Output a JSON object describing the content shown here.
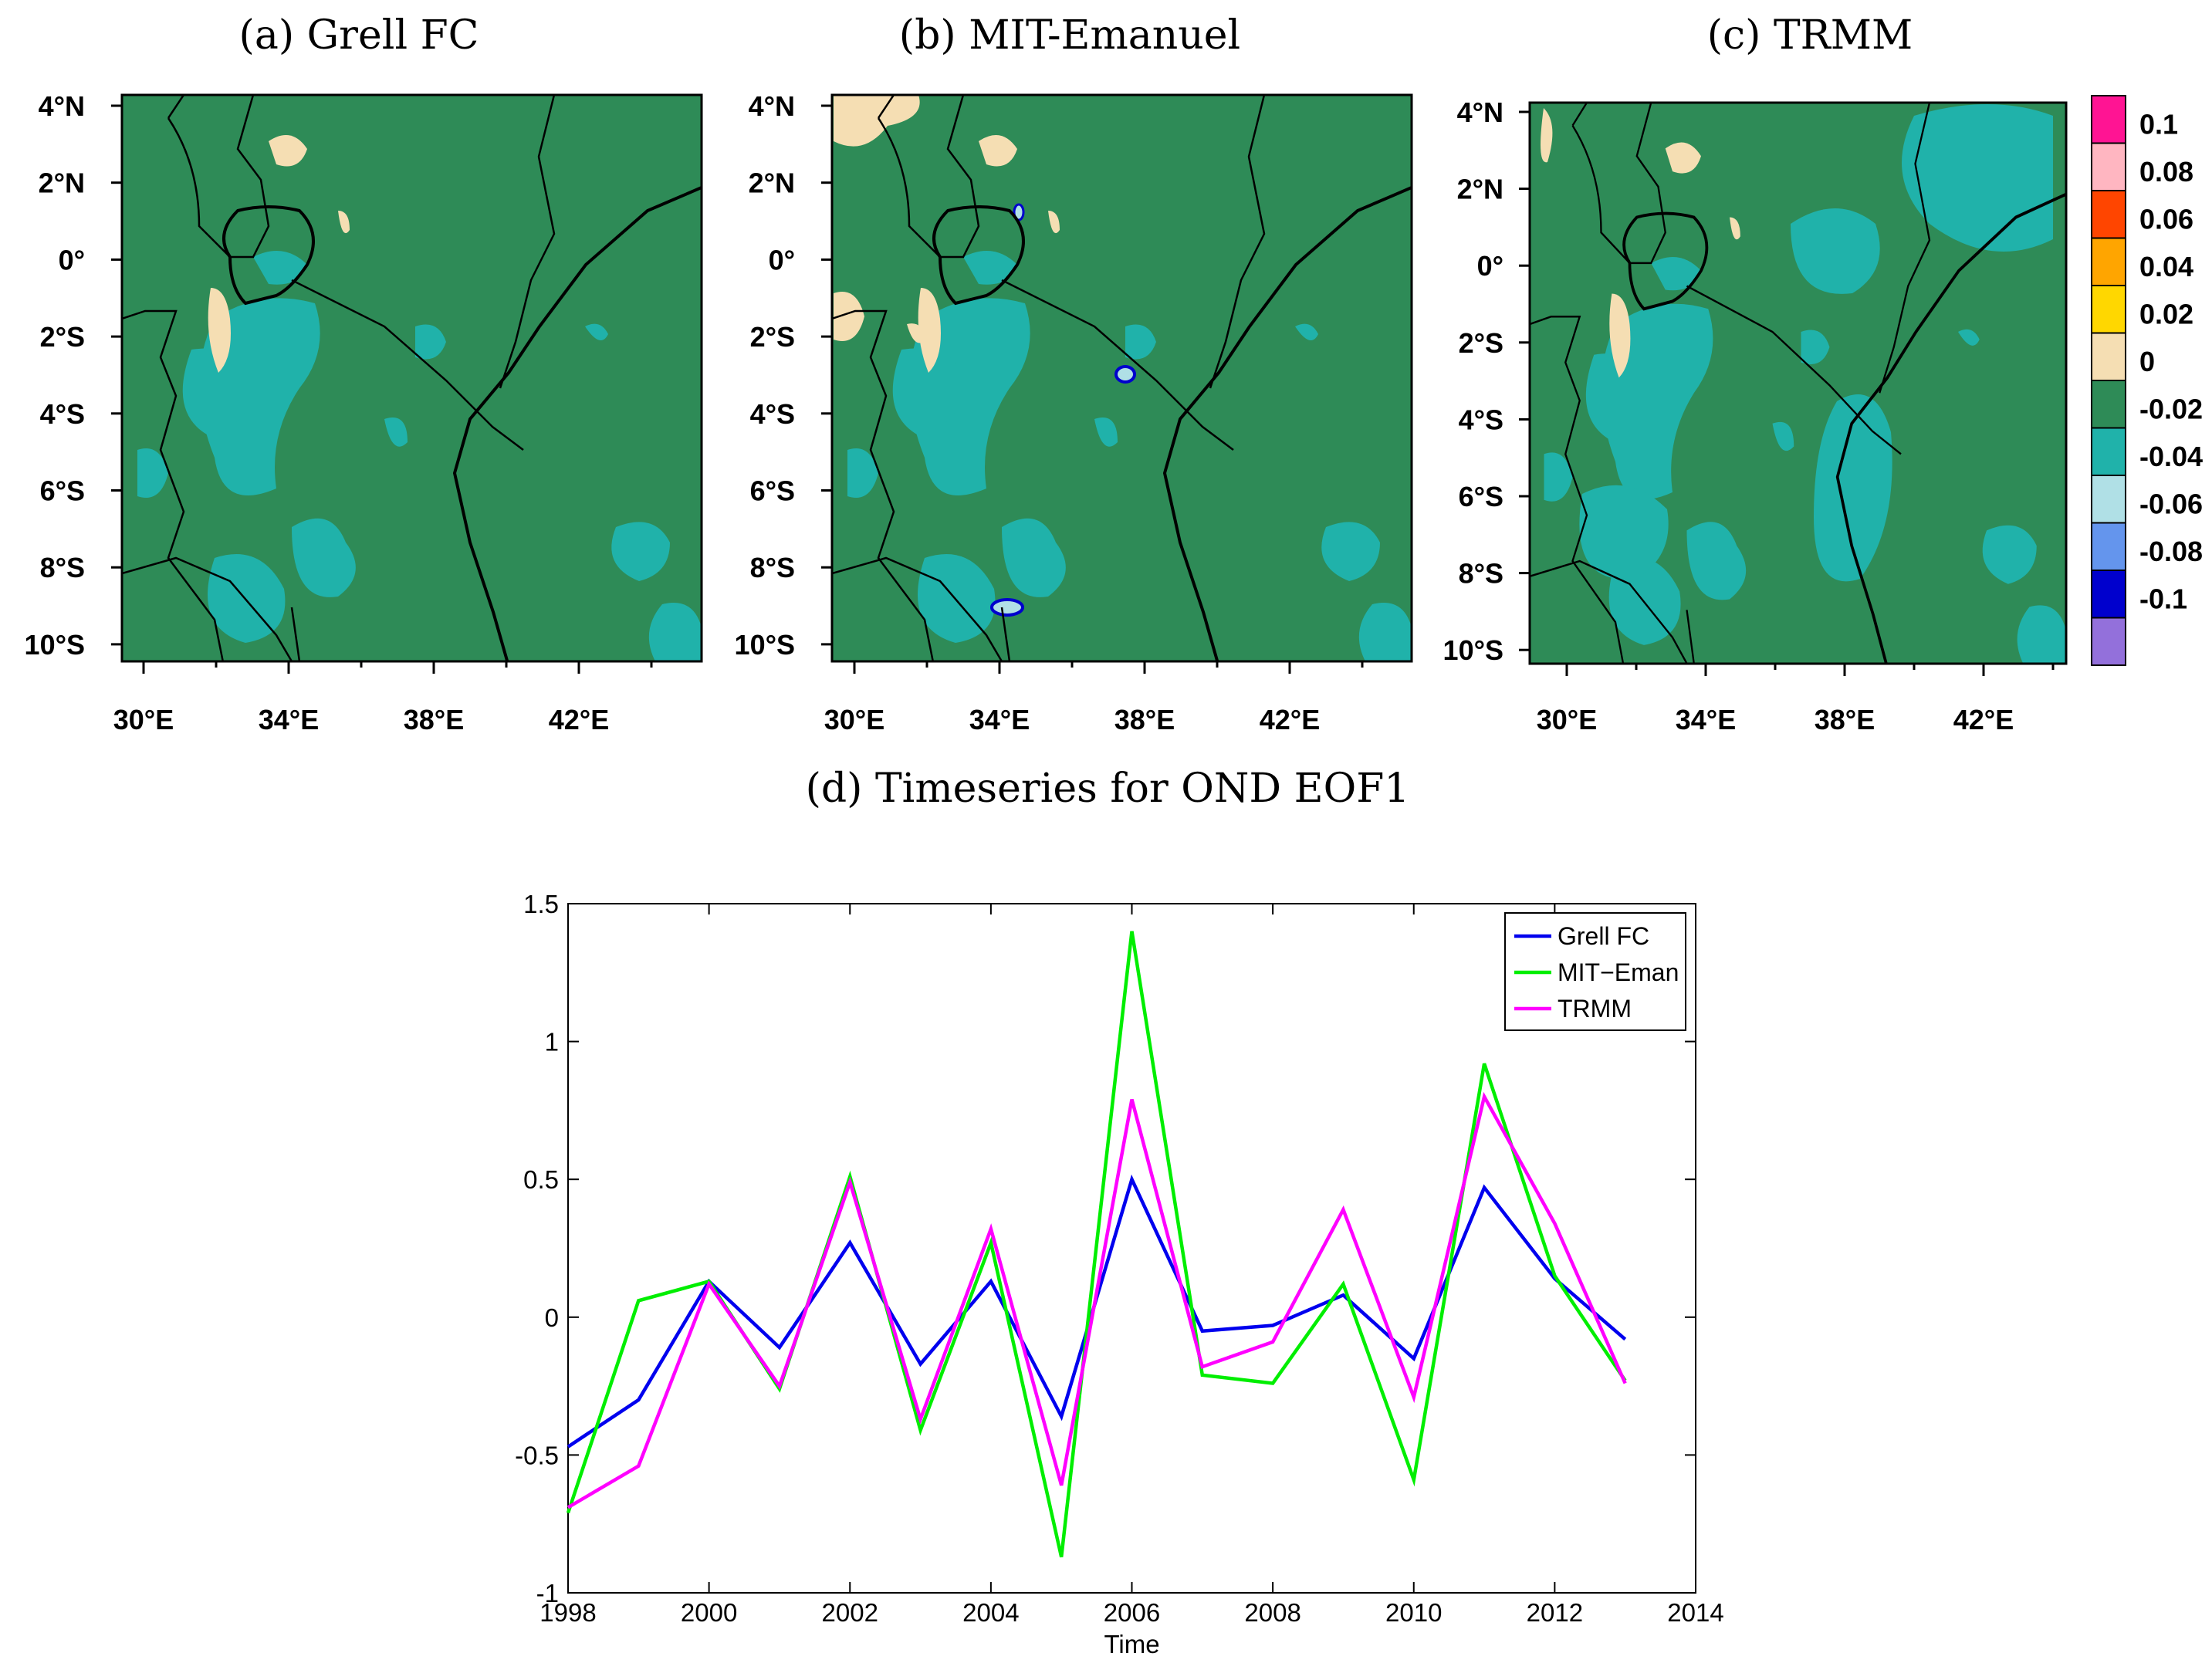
{
  "figure": {
    "map_panels": [
      {
        "title": "(a) Grell FC"
      },
      {
        "title": "(b) MIT-Emanuel"
      },
      {
        "title": "(c) TRMM"
      }
    ],
    "lat_labels": [
      "4°N",
      "2°N",
      "0°",
      "2°S",
      "4°S",
      "6°S",
      "8°S",
      "10°S"
    ],
    "lon_labels": [
      "30°E",
      "34°E",
      "38°E",
      "42°E"
    ],
    "colorbar": {
      "labels": [
        "0.1",
        "0.08",
        "0.06",
        "0.04",
        "0.02",
        "0",
        "-0.02",
        "-0.04",
        "-0.06",
        "-0.08",
        "-0.1"
      ],
      "colors": [
        "#ff1493",
        "#ffb6c1",
        "#ff4500",
        "#ffa500",
        "#ffd700",
        "#f5deb3",
        "#2e8b57",
        "#20b2aa",
        "#b0e0e6",
        "#6495ed",
        "#0000cd",
        "#9370db"
      ]
    },
    "map_colors": {
      "land": "#2e8b57",
      "neg": "#20b2aa",
      "pos": "#f5deb3",
      "neg_light": "#b0e0e6",
      "neg_blue": "#0000cd"
    }
  },
  "chart_data": {
    "type": "line",
    "title": "(d) Timeseries for OND EOF1",
    "xlabel": "Time",
    "ylabel": "",
    "xlim": [
      1998,
      2014
    ],
    "ylim": [
      -1,
      1.5
    ],
    "xticks": [
      1998,
      2000,
      2002,
      2004,
      2006,
      2008,
      2010,
      2012,
      2014
    ],
    "yticks": [
      -1,
      -0.5,
      0,
      0.5,
      1,
      1.5
    ],
    "x": [
      1998,
      1999,
      2000,
      2001,
      2002,
      2003,
      2004,
      2005,
      2006,
      2007,
      2008,
      2009,
      2010,
      2011,
      2012,
      2013
    ],
    "series": [
      {
        "name": "Grell FC",
        "color": "#0000ee",
        "values": [
          -0.47,
          -0.3,
          0.13,
          -0.11,
          0.27,
          -0.17,
          0.13,
          -0.36,
          0.5,
          -0.05,
          -0.03,
          0.08,
          -0.15,
          0.47,
          0.14,
          -0.08
        ]
      },
      {
        "name": "MIT−Eman",
        "color": "#00ee00",
        "values": [
          -0.71,
          0.06,
          0.13,
          -0.26,
          0.51,
          -0.41,
          0.27,
          -0.87,
          1.4,
          -0.21,
          -0.24,
          0.12,
          -0.59,
          0.92,
          0.15,
          -0.23
        ]
      },
      {
        "name": "TRMM",
        "color": "#ff00ff",
        "values": [
          -0.69,
          -0.54,
          0.12,
          -0.25,
          0.49,
          -0.37,
          0.32,
          -0.61,
          0.79,
          -0.18,
          -0.09,
          0.39,
          -0.29,
          0.8,
          0.34,
          -0.24
        ]
      }
    ],
    "legend": "top-right"
  }
}
